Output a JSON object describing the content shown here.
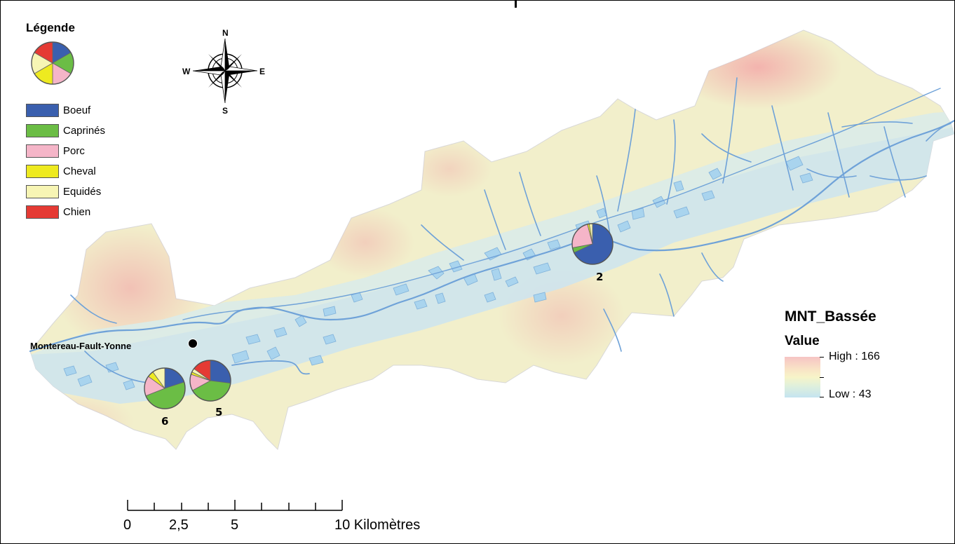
{
  "legend": {
    "title": "Légende",
    "items": [
      {
        "label": "Boeuf",
        "color": "#3a5fae"
      },
      {
        "label": "Caprinés",
        "color": "#6bbd45"
      },
      {
        "label": "Porc",
        "color": "#f5b5c8"
      },
      {
        "label": "Cheval",
        "color": "#eeea20"
      },
      {
        "label": "Equidés",
        "color": "#f7f5b4"
      },
      {
        "label": "Chien",
        "color": "#e53a34"
      }
    ]
  },
  "compass": {
    "n": "N",
    "s": "S",
    "e": "E",
    "w": "W"
  },
  "town": {
    "name": "Montereau-Fault-Yonne"
  },
  "sites": [
    {
      "label": "2",
      "shares": {
        "Boeuf": 0.68,
        "Caprinés": 0.04,
        "Porc": 0.24,
        "Cheval": 0.015,
        "Equidés": 0.025,
        "Chien": 0.0
      }
    },
    {
      "label": "5",
      "shares": {
        "Boeuf": 0.27,
        "Caprinés": 0.4,
        "Porc": 0.13,
        "Cheval": 0.02,
        "Equidés": 0.03,
        "Chien": 0.15
      }
    },
    {
      "label": "6",
      "shares": {
        "Boeuf": 0.2,
        "Caprinés": 0.49,
        "Porc": 0.16,
        "Cheval": 0.05,
        "Equidés": 0.1,
        "Chien": 0.0
      }
    }
  ],
  "raster_legend": {
    "title": "MNT_Bassée",
    "subtitle": "Value",
    "high": "High : 166",
    "low": "Low : 43",
    "high_color": "#f6c4c4",
    "mid_color": "#f7f4c8",
    "low_color": "#c4e4f0"
  },
  "scalebar": {
    "labels": [
      "0",
      "2,5",
      "5",
      "10 Kilomètres"
    ]
  },
  "colors": {
    "river": "#6fa2d8",
    "water_body": "#a9d4ee"
  }
}
